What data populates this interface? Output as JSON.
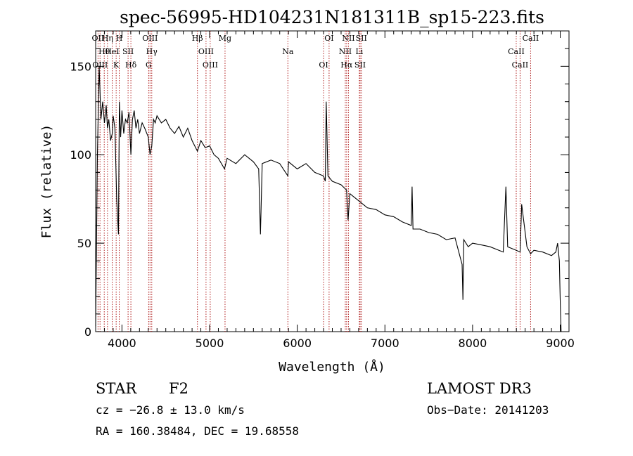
{
  "chart_data": {
    "type": "line",
    "title": "spec-56995-HD104231N181311B_sp15-223.fits",
    "xlabel": "Wavelength (Å)",
    "ylabel": "Flux (relative)",
    "xlim": [
      3700,
      9100
    ],
    "ylim": [
      0,
      170
    ],
    "xticks": [
      4000,
      5000,
      6000,
      7000,
      8000,
      9000
    ],
    "xtick_labels": [
      "4000",
      "5000",
      "6000",
      "7000",
      "8000",
      "9000"
    ],
    "yticks": [
      0,
      50,
      100,
      150
    ],
    "ytick_labels": [
      "0",
      "50",
      "100",
      "150"
    ],
    "grid": false,
    "line_color": "#000000",
    "marker_color": "#b22222",
    "series": [
      {
        "name": "flux",
        "x": [
          3700,
          3720,
          3740,
          3760,
          3780,
          3800,
          3820,
          3835,
          3850,
          3870,
          3889,
          3900,
          3920,
          3940,
          3960,
          3970,
          3985,
          4000,
          4020,
          4040,
          4060,
          4080,
          4102,
          4120,
          4140,
          4160,
          4180,
          4200,
          4230,
          4260,
          4300,
          4320,
          4340,
          4360,
          4380,
          4400,
          4450,
          4500,
          4550,
          4600,
          4650,
          4700,
          4750,
          4800,
          4861,
          4900,
          4950,
          5000,
          5050,
          5100,
          5170,
          5200,
          5300,
          5400,
          5500,
          5560,
          5580,
          5600,
          5700,
          5800,
          5893,
          5900,
          6000,
          6100,
          6200,
          6300,
          6320,
          6330,
          6350,
          6400,
          6500,
          6563,
          6580,
          6600,
          6650,
          6700,
          6750,
          6800,
          6900,
          7000,
          7100,
          7200,
          7300,
          7310,
          7320,
          7400,
          7500,
          7600,
          7700,
          7800,
          7880,
          7890,
          7900,
          7950,
          8000,
          8100,
          8200,
          8300,
          8350,
          8380,
          8400,
          8498,
          8542,
          8560,
          8620,
          8662,
          8700,
          8800,
          8900,
          8950,
          8970,
          8990,
          9000,
          9010
        ],
        "y": [
          3,
          100,
          150,
          120,
          130,
          118,
          128,
          115,
          120,
          108,
          112,
          122,
          115,
          75,
          55,
          130,
          110,
          125,
          112,
          120,
          118,
          124,
          100,
          120,
          125,
          115,
          120,
          112,
          118,
          115,
          110,
          100,
          105,
          120,
          118,
          122,
          118,
          120,
          115,
          112,
          116,
          110,
          115,
          108,
          102,
          108,
          104,
          105,
          100,
          98,
          92,
          98,
          95,
          100,
          96,
          92,
          55,
          95,
          97,
          95,
          88,
          96,
          92,
          95,
          90,
          88,
          85,
          130,
          88,
          85,
          83,
          80,
          63,
          78,
          76,
          74,
          72,
          70,
          69,
          66,
          65,
          62,
          60,
          82,
          58,
          58,
          56,
          55,
          52,
          53,
          38,
          18,
          52,
          48,
          50,
          49,
          48,
          46,
          45,
          82,
          48,
          46,
          45,
          72,
          48,
          44,
          46,
          45,
          43,
          45,
          50,
          40,
          18,
          0
        ]
      }
    ],
    "line_markers": [
      {
        "label": "OII",
        "wavelength": 3727
      },
      {
        "label": "Hθ",
        "wavelength": 3798
      },
      {
        "label": "OIII",
        "wavelength": 3750
      },
      {
        "label": "Hη",
        "wavelength": 3835
      },
      {
        "label": "HeI",
        "wavelength": 3889
      },
      {
        "label": "K",
        "wavelength": 3934
      },
      {
        "label": "H",
        "wavelength": 3969
      },
      {
        "label": "SII",
        "wavelength": 4070
      },
      {
        "label": "Hδ",
        "wavelength": 4102
      },
      {
        "label": "OIII",
        "wavelength": 4320
      },
      {
        "label": "Hγ",
        "wavelength": 4340
      },
      {
        "label": "G",
        "wavelength": 4305
      },
      {
        "label": "Hβ",
        "wavelength": 4861
      },
      {
        "label": "OIII",
        "wavelength": 4959
      },
      {
        "label": "OIII",
        "wavelength": 5007
      },
      {
        "label": "Mg",
        "wavelength": 5176
      },
      {
        "label": "Na",
        "wavelength": 5893
      },
      {
        "label": "OI",
        "wavelength": 6300
      },
      {
        "label": "OI",
        "wavelength": 6363
      },
      {
        "label": "NII",
        "wavelength": 6548
      },
      {
        "label": "Hα",
        "wavelength": 6563
      },
      {
        "label": "NII",
        "wavelength": 6584
      },
      {
        "label": "Li",
        "wavelength": 6708
      },
      {
        "label": "SII",
        "wavelength": 6717
      },
      {
        "label": "SII",
        "wavelength": 6731
      },
      {
        "label": "CaII",
        "wavelength": 8498
      },
      {
        "label": "CaII",
        "wavelength": 8542
      },
      {
        "label": "CaII",
        "wavelength": 8662
      }
    ]
  },
  "info": {
    "object_class": "STAR",
    "subclass": "F2",
    "survey": "LAMOST DR3",
    "cz": "cz = −26.8 ± 13.0 km/s",
    "obs_date": "Obs−Date: 20141203",
    "coords": "RA = 160.38484, DEC =  19.68558"
  }
}
